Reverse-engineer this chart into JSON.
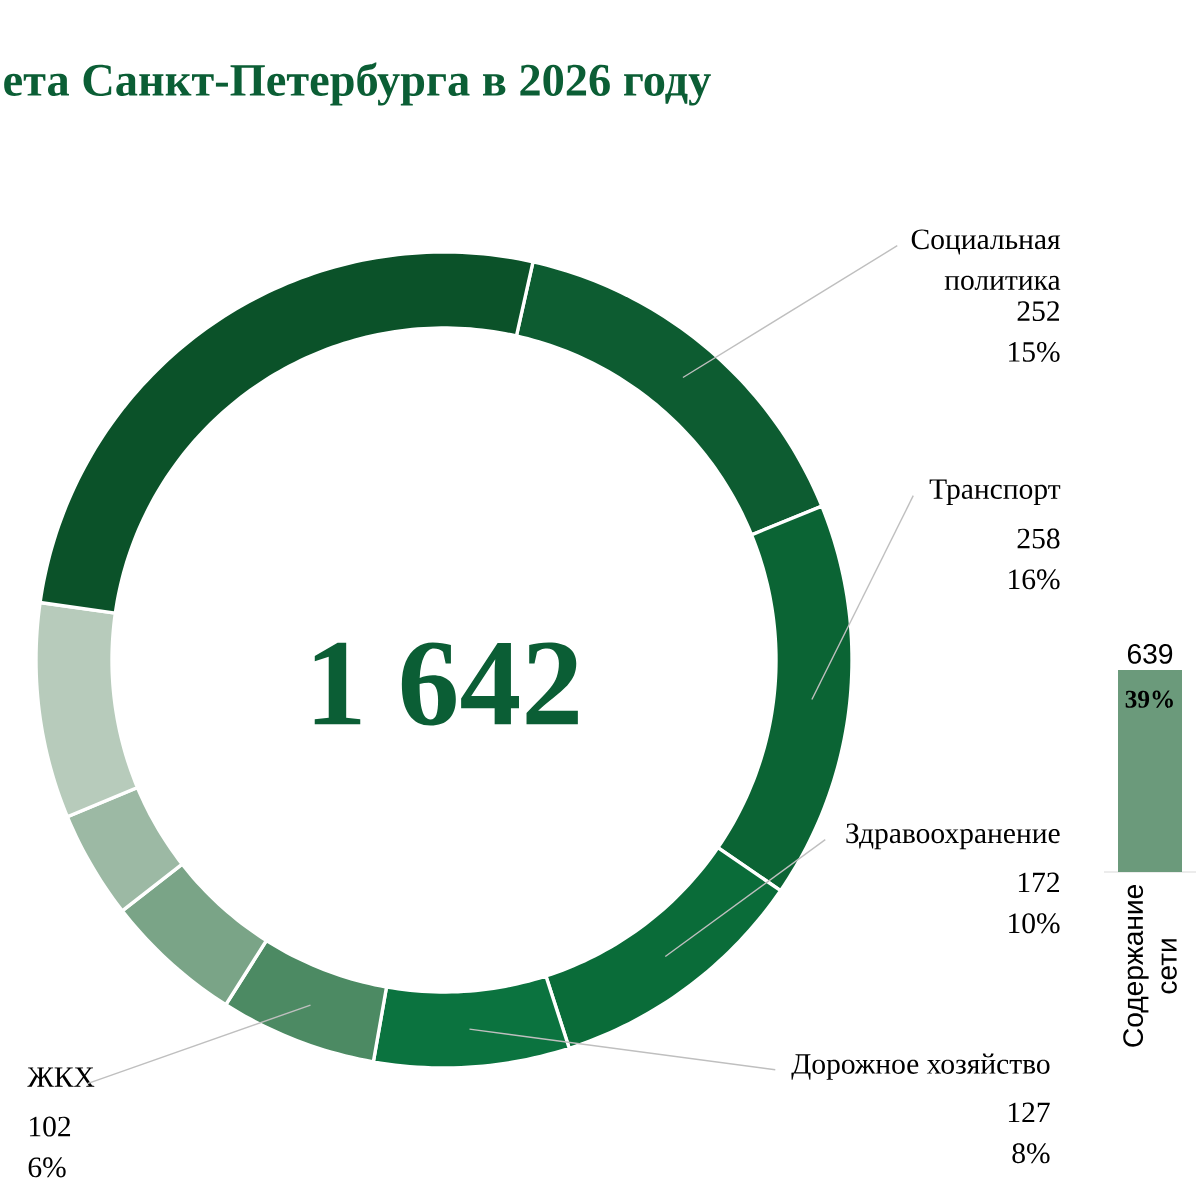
{
  "chart_data": [
    {
      "type": "donut",
      "title": "ета Санкт-Петербурга в 2026 году",
      "categories": [
        "Социальная политика",
        "Транспорт",
        "Здравоохранение",
        "Дорожное хозяйство",
        "ЖКХ",
        null,
        null,
        null,
        null
      ],
      "values": [
        252,
        258,
        172,
        127,
        102,
        90,
        70,
        140,
        431
      ],
      "colors": [
        "#0d5c31",
        "#0b6434",
        "#0a6c39",
        "#0b733f",
        "#4c8a63",
        "#7aa487",
        "#9cb9a4",
        "#b7cbbb",
        "#0b5229"
      ],
      "value_labels": [
        "252 15%",
        "258 16%",
        "172 10%",
        "127 8%",
        "102 6%",
        null,
        null,
        null,
        null
      ],
      "annotations": [
        "1 642"
      ]
    },
    {
      "type": "bar",
      "categories": [
        "Содержание сети"
      ],
      "values": [
        639
      ],
      "color": "#6b9a7b",
      "data_labels": true,
      "annotations": [
        "39%"
      ]
    }
  ]
}
